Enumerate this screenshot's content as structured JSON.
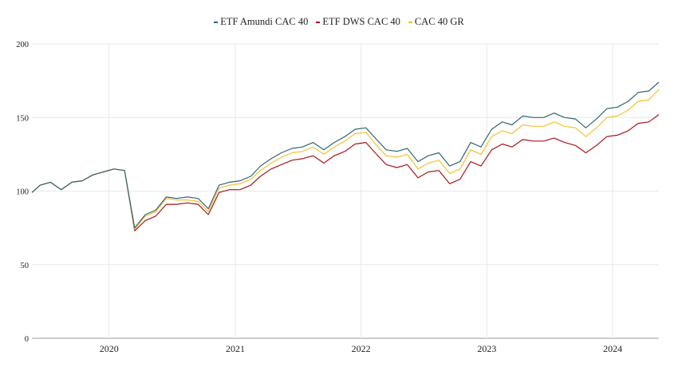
{
  "chart_data": {
    "type": "line",
    "title": "",
    "xlabel": "",
    "ylabel": "",
    "ylim": [
      0,
      200
    ],
    "yticks": [
      0,
      50,
      100,
      150,
      200
    ],
    "xlim": [
      "2019-05-22",
      "2024-05-14"
    ],
    "xticks": [
      "2020",
      "2021",
      "2022",
      "2023",
      "2024"
    ],
    "grid": true,
    "legend_position": "top",
    "x": [
      "2019-05-22",
      "2019-06-15",
      "2019-07-15",
      "2019-08-15",
      "2019-09-15",
      "2019-10-15",
      "2019-11-15",
      "2019-12-15",
      "2020-01-15",
      "2020-02-15",
      "2020-03-15",
      "2020-04-15",
      "2020-05-15",
      "2020-06-15",
      "2020-07-15",
      "2020-08-15",
      "2020-09-15",
      "2020-10-15",
      "2020-11-15",
      "2020-12-15",
      "2021-01-15",
      "2021-02-15",
      "2021-03-15",
      "2021-04-15",
      "2021-05-15",
      "2021-06-15",
      "2021-07-15",
      "2021-08-15",
      "2021-09-15",
      "2021-10-15",
      "2021-11-15",
      "2021-12-15",
      "2022-01-15",
      "2022-02-15",
      "2022-03-15",
      "2022-04-15",
      "2022-05-15",
      "2022-06-15",
      "2022-07-15",
      "2022-08-15",
      "2022-09-15",
      "2022-10-15",
      "2022-11-15",
      "2022-12-15",
      "2023-01-15",
      "2023-02-15",
      "2023-03-15",
      "2023-04-15",
      "2023-05-15",
      "2023-06-15",
      "2023-07-15",
      "2023-08-15",
      "2023-09-15",
      "2023-10-15",
      "2023-11-15",
      "2023-12-15",
      "2024-01-15",
      "2024-02-15",
      "2024-03-15",
      "2024-04-15",
      "2024-05-14"
    ],
    "series": [
      {
        "name": "ETF Amundi CAC 40",
        "color": "#2f6675",
        "values": [
          99,
          104,
          106,
          101,
          106,
          107,
          111,
          113,
          115,
          114,
          75,
          84,
          87,
          96,
          95,
          96,
          95,
          88,
          104,
          106,
          107,
          110,
          117,
          122,
          126,
          129,
          130,
          133,
          128,
          133,
          137,
          142,
          143,
          135,
          128,
          127,
          129,
          120,
          124,
          126,
          117,
          120,
          133,
          130,
          142,
          147,
          145,
          151,
          150,
          150,
          153,
          150,
          149,
          143,
          149,
          156,
          157,
          161,
          167,
          168,
          174
        ]
      },
      {
        "name": "ETF DWS CAC 40",
        "color": "#a8161e",
        "values": [
          99,
          104,
          106,
          101,
          106,
          107,
          111,
          113,
          115,
          114,
          73,
          80,
          83,
          91,
          91,
          92,
          91,
          84,
          99,
          101,
          101,
          104,
          110,
          115,
          118,
          121,
          122,
          124,
          119,
          124,
          127,
          132,
          133,
          125,
          118,
          116,
          118,
          109,
          113,
          114,
          105,
          108,
          120,
          117,
          128,
          132,
          130,
          135,
          134,
          134,
          136,
          133,
          131,
          126,
          131,
          137,
          138,
          141,
          146,
          147,
          152
        ]
      },
      {
        "name": "CAC 40 GR",
        "color": "#f3c230",
        "values": [
          99,
          104,
          106,
          101,
          106,
          107,
          111,
          113,
          115,
          114,
          74,
          83,
          86,
          95,
          94,
          94,
          93,
          86,
          102,
          104,
          105,
          108,
          114,
          119,
          123,
          126,
          127,
          130,
          125,
          130,
          134,
          139,
          140,
          131,
          124,
          123,
          125,
          115,
          119,
          121,
          112,
          115,
          128,
          125,
          137,
          141,
          139,
          145,
          144,
          144,
          147,
          144,
          143,
          137,
          143,
          150,
          151,
          155,
          161,
          162,
          169
        ]
      }
    ]
  }
}
